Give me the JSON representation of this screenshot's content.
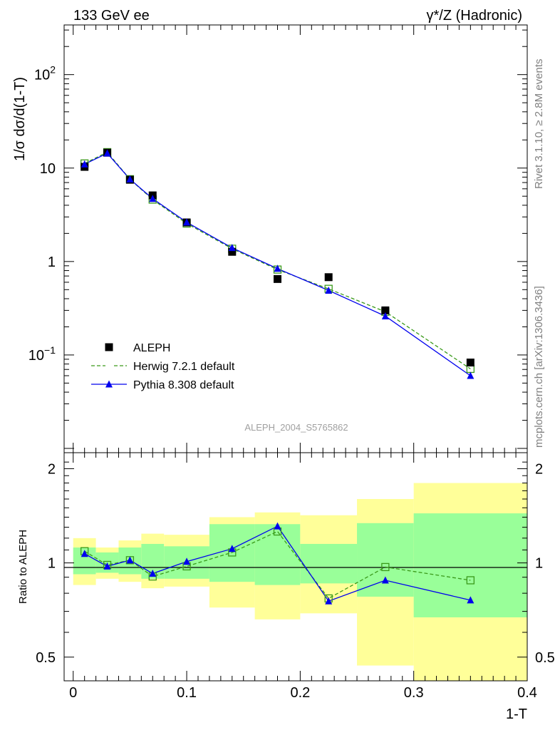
{
  "header": {
    "energy_label": "133 GeV ee",
    "process_label": "γ*/Z (Hadronic)"
  },
  "side": {
    "rivet_label": "Rivet 3.1.10, ≥ 2.8M events",
    "mcplots_label": "mcplots.cern.ch [arXiv:1306.3436]"
  },
  "analysis_id": "ALEPH_2004_S5765862",
  "colors": {
    "data": "#000000",
    "herwig": "#3a9a1a",
    "pythia": "#0000ee",
    "band_outer": "#ffff99",
    "band_inner": "#99ff99"
  },
  "chart_data": [
    {
      "type": "scatter",
      "panel": "main",
      "xlabel": "",
      "ylabel": "1/σ dσ/d(1-T)",
      "xlim": [
        -0.008,
        0.4
      ],
      "ylim": [
        0.009,
        340
      ],
      "yscale": "log",
      "ytick_labels": [
        "10^-1",
        "1",
        "10",
        "10^2"
      ],
      "legend_position": "bottom-left",
      "series": [
        {
          "name": "ALEPH",
          "style": "black filled squares",
          "x": [
            0.01,
            0.03,
            0.05,
            0.07,
            0.1,
            0.14,
            0.18,
            0.225,
            0.275,
            0.35
          ],
          "y": [
            10.3,
            14.6,
            7.5,
            5.1,
            2.62,
            1.27,
            0.65,
            0.68,
            0.3,
            0.083
          ]
        },
        {
          "name": "Herwig 7.2.1 default",
          "style": "green dashed line, open squares",
          "x": [
            0.01,
            0.03,
            0.05,
            0.07,
            0.1,
            0.14,
            0.18,
            0.225,
            0.275,
            0.35
          ],
          "y": [
            11.2,
            14.8,
            7.6,
            4.6,
            2.55,
            1.37,
            0.82,
            0.51,
            0.29,
            0.071
          ]
        },
        {
          "name": "Pythia 8.308 default",
          "style": "blue solid line, filled triangles",
          "x": [
            0.01,
            0.03,
            0.05,
            0.07,
            0.1,
            0.14,
            0.18,
            0.225,
            0.275,
            0.35
          ],
          "y": [
            11.0,
            14.4,
            7.6,
            4.7,
            2.63,
            1.4,
            0.84,
            0.49,
            0.26,
            0.06
          ]
        }
      ]
    },
    {
      "type": "line",
      "panel": "ratio",
      "xlabel": "1-T",
      "ylabel": "Ratio to ALEPH",
      "xlim": [
        -0.008,
        0.4
      ],
      "ylim": [
        0.42,
        2.25
      ],
      "yscale": "log",
      "xticks": [
        0,
        0.1,
        0.2,
        0.3,
        0.4
      ],
      "xtick_labels": [
        "0",
        "0.1",
        "0.2",
        "0.3",
        "0.4"
      ],
      "yticks": [
        0.5,
        1,
        2
      ],
      "ytick_labels": [
        "0.5",
        "1",
        "2"
      ],
      "bins": [
        [
          0.0,
          0.02
        ],
        [
          0.02,
          0.04
        ],
        [
          0.04,
          0.06
        ],
        [
          0.06,
          0.08
        ],
        [
          0.08,
          0.12
        ],
        [
          0.12,
          0.16
        ],
        [
          0.16,
          0.2
        ],
        [
          0.2,
          0.25
        ],
        [
          0.25,
          0.3
        ],
        [
          0.3,
          0.4
        ]
      ],
      "band_outer": [
        [
          0.85,
          1.2
        ],
        [
          0.89,
          1.12
        ],
        [
          0.87,
          1.18
        ],
        [
          0.83,
          1.24
        ],
        [
          0.84,
          1.23
        ],
        [
          0.72,
          1.4
        ],
        [
          0.66,
          1.45
        ],
        [
          0.69,
          1.42
        ],
        [
          0.47,
          1.6
        ],
        [
          0.33,
          1.8
        ]
      ],
      "band_inner": [
        [
          0.92,
          1.12
        ],
        [
          0.93,
          1.08
        ],
        [
          0.92,
          1.12
        ],
        [
          0.89,
          1.15
        ],
        [
          0.89,
          1.13
        ],
        [
          0.87,
          1.33
        ],
        [
          0.85,
          1.33
        ],
        [
          0.86,
          1.15
        ],
        [
          0.78,
          1.34
        ],
        [
          0.67,
          1.44
        ]
      ],
      "series": [
        {
          "name": "Herwig 7.2.1 default",
          "x": [
            0.01,
            0.03,
            0.05,
            0.07,
            0.1,
            0.14,
            0.18,
            0.225,
            0.275,
            0.35
          ],
          "y": [
            1.09,
            0.985,
            1.02,
            0.905,
            0.975,
            1.08,
            1.26,
            0.77,
            0.97,
            0.88
          ]
        },
        {
          "name": "Pythia 8.308 default",
          "x": [
            0.01,
            0.03,
            0.05,
            0.07,
            0.1,
            0.14,
            0.18,
            0.225,
            0.275,
            0.35
          ],
          "y": [
            1.07,
            0.975,
            1.02,
            0.925,
            1.01,
            1.11,
            1.31,
            0.755,
            0.88,
            0.76
          ]
        }
      ]
    }
  ]
}
